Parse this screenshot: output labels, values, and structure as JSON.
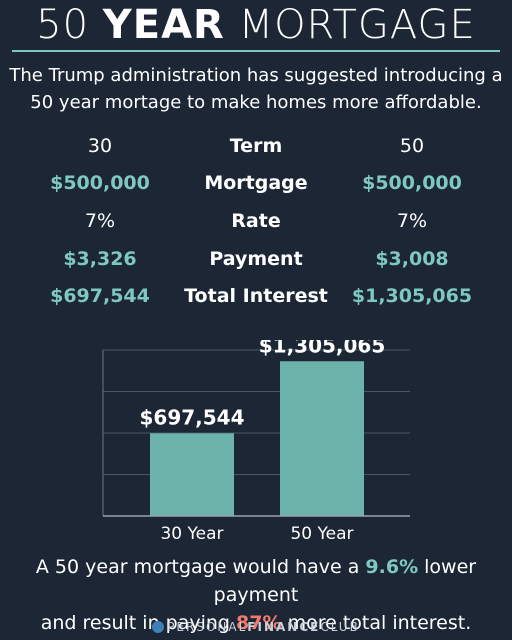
{
  "header": {
    "title_light": "50",
    "title_bold": "YEAR",
    "title_tail": "MORTGAGE"
  },
  "intro": {
    "line1": "The Trump administration has suggested introducing a",
    "line2": "50 year mortage to make homes more affordable."
  },
  "comparison": {
    "rows": [
      {
        "label": "Term",
        "left": "30",
        "right": "50",
        "style": "white"
      },
      {
        "label": "Mortgage",
        "left": "$500,000",
        "right": "$500,000",
        "style": "teal"
      },
      {
        "label": "Rate",
        "left": "7%",
        "right": "7%",
        "style": "white"
      },
      {
        "label": "Payment",
        "left": "$3,326",
        "right": "$3,008",
        "style": "teal"
      },
      {
        "label": "Total Interest",
        "left": "$697,544",
        "right": "$1,305,065",
        "style": "teal"
      }
    ]
  },
  "chart_data": {
    "type": "bar",
    "categories": [
      "30 Year",
      "50 Year"
    ],
    "values": [
      697544,
      1305065
    ],
    "data_labels": [
      "$697,544",
      "$1,305,065"
    ],
    "ylim": [
      0,
      1400000
    ],
    "grid": true,
    "bar_color": "#6cb4ab"
  },
  "conclusion": {
    "line1_pre": "A 50 year mortgage would have a",
    "line1_hl": "9.6%",
    "line1_post": "lower payment",
    "line2_pre": "and result in paying",
    "line2_hl": "87%",
    "line2_post": "more total interest."
  },
  "footer": {
    "brand_pre": "PERSONAL",
    "brand_bold": "FINANCE",
    "brand_post": "CLUB"
  },
  "colors": {
    "background": "#1c2635",
    "accent": "#7fc8c0",
    "highlight": "#f07a6e"
  }
}
